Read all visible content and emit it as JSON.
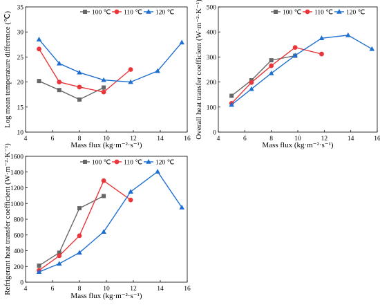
{
  "chart_data": [
    {
      "type": "line",
      "ylabel": "Log mean temperature difference (℃)",
      "xlabel": "Mass flux (kg·m⁻²·s⁻¹)",
      "xlim": [
        4,
        16
      ],
      "ylim": [
        10,
        35
      ],
      "xticks": [
        4,
        6,
        8,
        10,
        12,
        14,
        16
      ],
      "yticks": [
        10,
        15,
        20,
        25,
        30,
        35
      ],
      "legend_position": "top-center",
      "series": [
        {
          "name": "100 ℃",
          "color": "#666666",
          "marker": "square",
          "x": [
            5.0,
            6.5,
            8.0,
            9.8
          ],
          "y": [
            20.2,
            18.4,
            16.5,
            18.9
          ]
        },
        {
          "name": "110 ℃",
          "color": "#e8363a",
          "marker": "circle",
          "x": [
            5.0,
            6.5,
            8.0,
            9.8,
            11.8
          ],
          "y": [
            26.6,
            20.0,
            19.0,
            18.0,
            22.5
          ]
        },
        {
          "name": "120 ℃",
          "color": "#1e6fd0",
          "marker": "triangle",
          "x": [
            5.0,
            6.5,
            8.0,
            9.8,
            11.8,
            13.8,
            15.6
          ],
          "y": [
            28.5,
            23.7,
            21.9,
            20.4,
            20.0,
            22.2,
            27.9
          ]
        }
      ]
    },
    {
      "type": "line",
      "ylabel": "Overall heat transfer coefficient (W·m⁻²·K⁻¹)",
      "xlabel": "Mass flux (kg·m⁻²·s⁻¹)",
      "xlim": [
        4,
        16
      ],
      "ylim": [
        0,
        500
      ],
      "xticks": [
        4,
        6,
        8,
        10,
        12,
        14,
        16
      ],
      "yticks": [
        0,
        100,
        200,
        300,
        400,
        500
      ],
      "legend_position": "top-center",
      "series": [
        {
          "name": "100 ℃",
          "color": "#666666",
          "marker": "square",
          "x": [
            5.0,
            6.5,
            8.0,
            9.8
          ],
          "y": [
            145,
            207,
            287,
            305
          ]
        },
        {
          "name": "110 ℃",
          "color": "#e8363a",
          "marker": "circle",
          "x": [
            5.0,
            6.5,
            8.0,
            9.8,
            11.8
          ],
          "y": [
            115,
            198,
            265,
            338,
            312
          ]
        },
        {
          "name": "120 ℃",
          "color": "#1e6fd0",
          "marker": "triangle",
          "x": [
            5.0,
            6.5,
            8.0,
            9.8,
            11.8,
            13.8,
            15.6
          ],
          "y": [
            109,
            172,
            235,
            306,
            375,
            387,
            332
          ]
        }
      ]
    },
    {
      "type": "line",
      "ylabel": "Refrigerant heat transfer coefficient (W·m⁻²·K⁻¹)",
      "xlabel": "Mass flux (kg·m⁻²·s⁻¹)",
      "xlim": [
        4,
        16
      ],
      "ylim": [
        0,
        1600
      ],
      "xticks": [
        4,
        6,
        8,
        10,
        12,
        14,
        16
      ],
      "yticks": [
        0,
        200,
        400,
        600,
        800,
        1000,
        1200,
        1400,
        1600
      ],
      "legend_position": "top-center",
      "series": [
        {
          "name": "100 ℃",
          "color": "#666666",
          "marker": "square",
          "x": [
            5.0,
            6.5,
            8.0,
            9.8
          ],
          "y": [
            210,
            375,
            940,
            1095
          ]
        },
        {
          "name": "110 ℃",
          "color": "#e8363a",
          "marker": "circle",
          "x": [
            5.0,
            6.5,
            8.0,
            9.8,
            11.8
          ],
          "y": [
            150,
            335,
            590,
            1290,
            1045
          ]
        },
        {
          "name": "120 ℃",
          "color": "#1e6fd0",
          "marker": "triangle",
          "x": [
            5.0,
            6.5,
            8.0,
            9.8,
            11.8,
            13.8,
            15.6
          ],
          "y": [
            130,
            235,
            375,
            640,
            1150,
            1405,
            950
          ]
        }
      ]
    }
  ]
}
